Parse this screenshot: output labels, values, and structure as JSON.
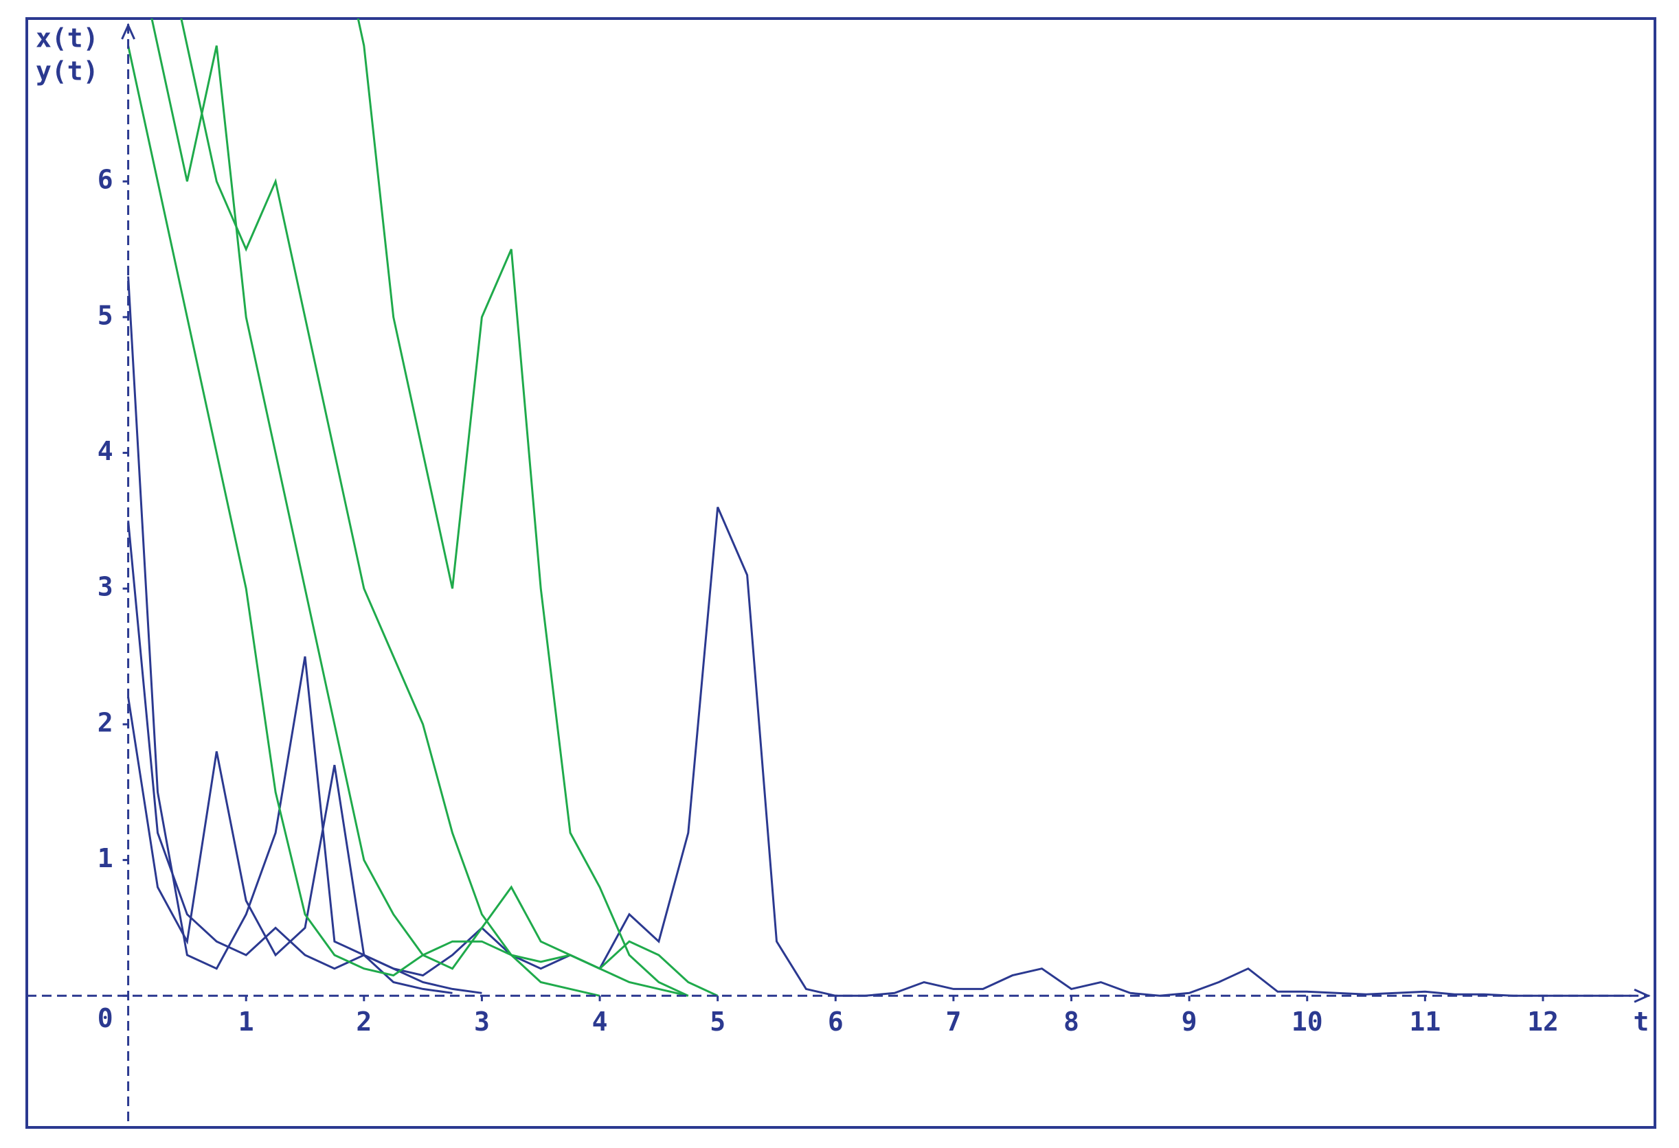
{
  "chart_data": {
    "type": "line",
    "x_label": "t",
    "x": [
      0,
      0.25,
      0.5,
      0.75,
      1,
      1.25,
      1.5,
      1.75,
      2,
      2.25,
      2.5,
      2.75,
      3,
      3.25,
      3.5,
      3.75,
      4,
      4.25,
      4.5,
      4.75,
      5,
      5.25,
      5.5,
      5.75,
      6,
      6.25,
      6.5,
      6.75,
      7,
      7.25,
      7.5,
      7.75,
      8,
      8.25,
      8.5,
      8.75,
      9,
      9.25,
      9.5,
      9.75,
      10,
      10.25,
      10.5,
      10.75,
      11,
      11.25,
      11.5,
      11.75,
      12,
      12.25,
      12.5,
      12.75
    ],
    "series": [
      {
        "name": "x(t)",
        "color": "#2b3990",
        "runs": [
          [
            3.5,
            1.2,
            0.6,
            0.4,
            0.3,
            0.5,
            0.3,
            0.2,
            0.3,
            0.2,
            0.15,
            0.3,
            0.5,
            0.3,
            0.2,
            0.3,
            0.2,
            0.6,
            0.4,
            1.2,
            3.6,
            3.1,
            0.4,
            0.05,
            0,
            0,
            0.02,
            0.1,
            0.05,
            0.05,
            0.15,
            0.2,
            0.05,
            0.1,
            0.02,
            0,
            0.02,
            0.1,
            0.2,
            0.03,
            0.03,
            0.02,
            0.01,
            0.02,
            0.03,
            0.01,
            0.01,
            0,
            0,
            0,
            0,
            0
          ],
          [
            5.3,
            1.5,
            0.3,
            0.2,
            0.6,
            1.2,
            2.5,
            0.4,
            0.3,
            0.1,
            0.05,
            0.02,
            null,
            null,
            null,
            null,
            null,
            null,
            null,
            null,
            null,
            null,
            null,
            null,
            null,
            null,
            null,
            null,
            null,
            null,
            null,
            null,
            null,
            null,
            null,
            null,
            null,
            null,
            null,
            null,
            null,
            null,
            null,
            null,
            null,
            null,
            null,
            null,
            null,
            null,
            null,
            null
          ],
          [
            2.2,
            0.8,
            0.4,
            1.8,
            0.7,
            0.3,
            0.5,
            1.7,
            0.3,
            0.2,
            0.1,
            0.05,
            0.02,
            null,
            null,
            null,
            null,
            null,
            null,
            null,
            null,
            null,
            null,
            null,
            null,
            null,
            null,
            null,
            null,
            null,
            null,
            null,
            null,
            null,
            null,
            null,
            null,
            null,
            null,
            null,
            null,
            null,
            null,
            null,
            null,
            null,
            null,
            null,
            null,
            null,
            null,
            null
          ]
        ]
      },
      {
        "name": "y(t)",
        "color": "#1faa4b",
        "runs": [
          [
            9,
            8,
            7,
            6,
            5.5,
            6,
            5,
            4,
            3,
            2.5,
            2,
            1.2,
            0.6,
            0.3,
            0.1,
            0.05,
            0,
            null,
            null,
            null,
            null,
            null,
            null,
            null,
            null,
            null,
            null,
            null,
            null,
            null,
            null,
            null,
            null,
            null,
            null,
            null,
            null,
            null,
            null,
            null,
            null,
            null,
            null,
            null,
            null,
            null,
            null,
            null,
            null,
            null,
            null,
            null
          ],
          [
            10,
            9,
            9.5,
            8,
            8,
            9,
            9,
            8,
            7,
            5,
            4,
            3,
            5,
            5.5,
            3,
            1.2,
            0.8,
            0.3,
            0.1,
            0,
            null,
            null,
            null,
            null,
            null,
            null,
            null,
            null,
            null,
            null,
            null,
            null,
            null,
            null,
            null,
            null,
            null,
            null,
            null,
            null,
            null,
            null,
            null,
            null,
            null,
            null,
            null,
            null,
            null,
            null,
            null,
            null
          ],
          [
            7,
            6,
            5,
            4,
            3,
            1.5,
            0.6,
            0.3,
            0.2,
            0.15,
            0.3,
            0.4,
            0.4,
            0.3,
            0.25,
            0.3,
            0.2,
            0.4,
            0.3,
            0.1,
            0,
            null,
            null,
            null,
            null,
            null,
            null,
            null,
            null,
            null,
            null,
            null,
            null,
            null,
            null,
            null,
            null,
            null,
            null,
            null,
            null,
            null,
            null,
            null,
            null,
            null,
            null,
            null,
            null,
            null,
            null,
            null
          ],
          [
            8,
            7,
            6,
            7,
            5,
            4,
            3,
            2,
            1,
            0.6,
            0.3,
            0.2,
            0.5,
            0.8,
            0.4,
            0.3,
            0.2,
            0.1,
            0.05,
            0,
            null,
            null,
            null,
            null,
            null,
            null,
            null,
            null,
            null,
            null,
            null,
            null,
            null,
            null,
            null,
            null,
            null,
            null,
            null,
            null,
            null,
            null,
            null,
            null,
            null,
            null,
            null,
            null,
            null,
            null,
            null,
            null
          ]
        ]
      }
    ],
    "xlim": [
      -0.86,
      12.95
    ],
    "ylim": [
      -0.97,
      7.2
    ],
    "xticks": [
      1,
      2,
      3,
      4,
      5,
      6,
      7,
      8,
      9,
      10,
      11,
      12
    ],
    "yticks": [
      0,
      1,
      2,
      3,
      4,
      5,
      6
    ],
    "grid": false
  }
}
